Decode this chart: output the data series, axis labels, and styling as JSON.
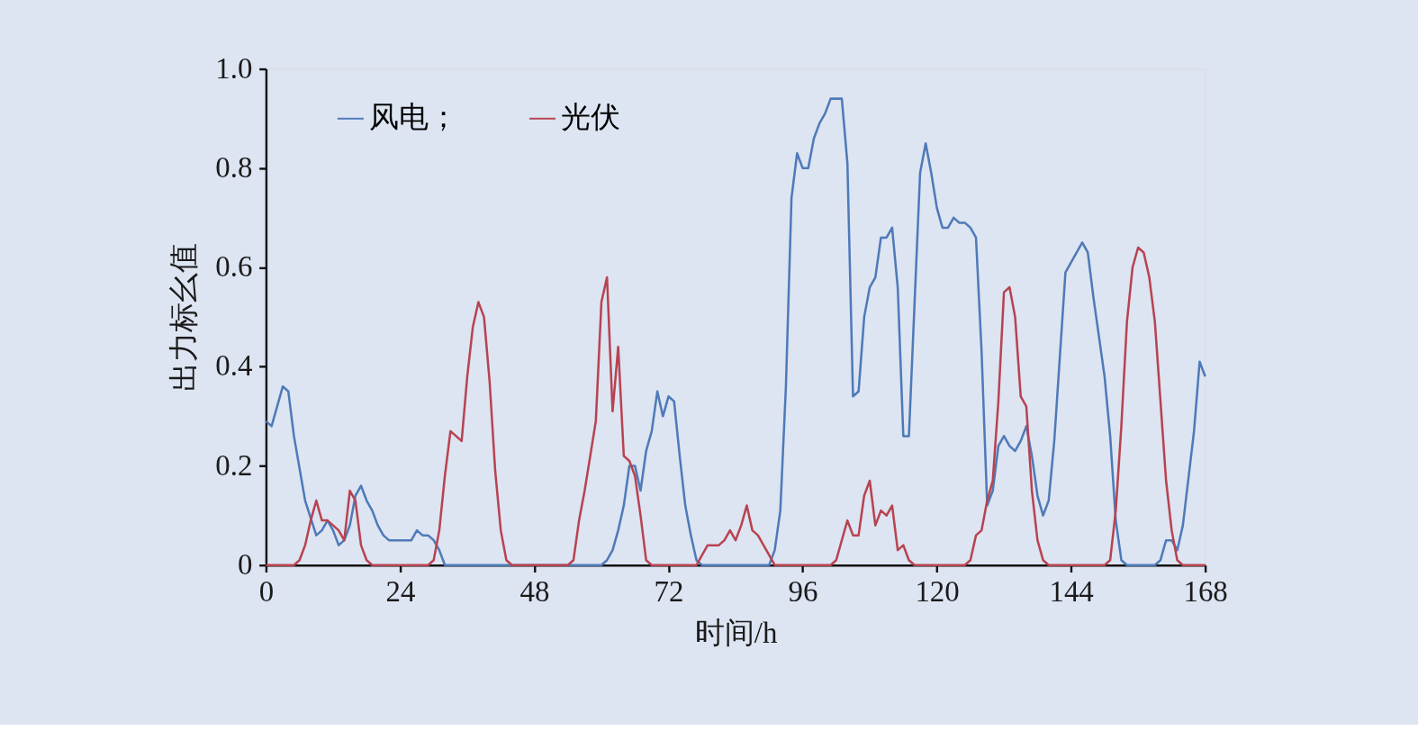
{
  "chart_data": {
    "type": "line",
    "xlabel": "时间/h",
    "ylabel": "出力标幺值",
    "xlim": [
      0,
      168
    ],
    "xticks": [
      0,
      24,
      48,
      72,
      96,
      120,
      144,
      168
    ],
    "ylim": [
      0,
      1
    ],
    "yticks": [
      0,
      0.2,
      0.4,
      0.6,
      0.8,
      {
        "value": 1,
        "label": "1.0"
      }
    ],
    "grid": false,
    "legend": "top left",
    "marker": "none",
    "line_style": "solid",
    "series": [
      {
        "name": "风电；",
        "color": "#4e7ab8",
        "x": [
          0,
          1,
          3,
          4,
          5,
          7,
          9,
          10,
          11,
          12,
          13,
          14,
          15,
          16,
          17,
          18,
          19,
          20,
          21,
          22,
          26,
          27,
          28,
          29,
          30,
          31,
          32,
          60,
          61,
          62,
          63,
          64,
          65,
          66,
          67,
          68,
          69,
          70,
          71,
          72,
          73,
          74,
          75,
          76,
          77,
          78,
          90,
          91,
          92,
          93,
          94,
          95,
          96,
          97,
          98,
          99,
          100,
          101,
          103,
          104,
          105,
          106,
          107,
          108,
          109,
          110,
          111,
          112,
          113,
          114,
          115,
          117,
          118,
          119,
          120,
          121,
          122,
          123,
          124,
          125,
          126,
          127,
          128,
          129,
          130,
          131,
          132,
          133,
          134,
          135,
          136,
          137,
          138,
          139,
          140,
          141,
          143,
          146,
          147,
          148,
          149,
          150,
          151,
          152,
          153,
          154,
          159,
          160,
          161,
          162,
          163,
          164,
          166,
          167,
          168
        ],
        "values": [
          0.29,
          0.28,
          0.36,
          0.35,
          0.26,
          0.13,
          0.06,
          0.07,
          0.09,
          0.07,
          0.04,
          0.05,
          0.08,
          0.14,
          0.16,
          0.13,
          0.11,
          0.08,
          0.06,
          0.05,
          0.05,
          0.07,
          0.06,
          0.06,
          0.05,
          0.03,
          0,
          0,
          0.01,
          0.03,
          0.07,
          0.12,
          0.2,
          0.2,
          0.15,
          0.23,
          0.27,
          0.35,
          0.3,
          0.34,
          0.33,
          0.22,
          0.12,
          0.06,
          0.01,
          0,
          0,
          0.03,
          0.11,
          0.36,
          0.74,
          0.83,
          0.8,
          0.8,
          0.86,
          0.89,
          0.91,
          0.94,
          0.94,
          0.81,
          0.34,
          0.35,
          0.5,
          0.56,
          0.58,
          0.66,
          0.66,
          0.68,
          0.56,
          0.26,
          0.26,
          0.79,
          0.85,
          0.79,
          0.72,
          0.68,
          0.68,
          0.7,
          0.69,
          0.69,
          0.68,
          0.66,
          0.43,
          0.12,
          0.15,
          0.24,
          0.26,
          0.24,
          0.23,
          0.25,
          0.28,
          0.22,
          0.14,
          0.1,
          0.13,
          0.25,
          0.59,
          0.65,
          0.63,
          0.54,
          0.46,
          0.38,
          0.26,
          0.09,
          0.01,
          0,
          0,
          0.01,
          0.05,
          0.05,
          0.03,
          0.08,
          0.27,
          0.41,
          0.38
        ]
      },
      {
        "name": "光伏",
        "color": "#b84350",
        "x": [
          0,
          5,
          6,
          7,
          8,
          9,
          10,
          11,
          12,
          13,
          14,
          15,
          16,
          17,
          18,
          19,
          29,
          30,
          31,
          32,
          33,
          34,
          35,
          36,
          37,
          38,
          39,
          40,
          41,
          42,
          43,
          44,
          54,
          55,
          56,
          57,
          58,
          59,
          60,
          61,
          62,
          63,
          64,
          65,
          66,
          67,
          68,
          69,
          77,
          78,
          79,
          80,
          81,
          82,
          83,
          84,
          85,
          86,
          87,
          88,
          89,
          90,
          91,
          101,
          102,
          103,
          104,
          105,
          106,
          107,
          108,
          109,
          110,
          111,
          112,
          113,
          114,
          115,
          116,
          125,
          126,
          127,
          128,
          129,
          130,
          131,
          132,
          133,
          134,
          135,
          136,
          137,
          138,
          139,
          140,
          150,
          151,
          152,
          153,
          154,
          155,
          156,
          157,
          158,
          159,
          160,
          161,
          162,
          163,
          164,
          168
        ],
        "values": [
          0,
          0,
          0.01,
          0.04,
          0.09,
          0.13,
          0.09,
          0.09,
          0.08,
          0.07,
          0.05,
          0.15,
          0.13,
          0.04,
          0.01,
          0,
          0,
          0.01,
          0.07,
          0.18,
          0.27,
          0.26,
          0.25,
          0.38,
          0.48,
          0.53,
          0.5,
          0.37,
          0.19,
          0.07,
          0.01,
          0,
          0,
          0.01,
          0.09,
          0.15,
          0.22,
          0.29,
          0.53,
          0.58,
          0.31,
          0.44,
          0.22,
          0.21,
          0.18,
          0.1,
          0.01,
          0,
          0,
          0.02,
          0.04,
          0.04,
          0.04,
          0.05,
          0.07,
          0.05,
          0.08,
          0.12,
          0.07,
          0.06,
          0.04,
          0.02,
          0,
          0,
          0.01,
          0.05,
          0.09,
          0.06,
          0.06,
          0.14,
          0.17,
          0.08,
          0.11,
          0.1,
          0.12,
          0.03,
          0.04,
          0.01,
          0,
          0,
          0.01,
          0.06,
          0.07,
          0.13,
          0.17,
          0.33,
          0.55,
          0.56,
          0.5,
          0.34,
          0.32,
          0.15,
          0.05,
          0.01,
          0,
          0,
          0.01,
          0.11,
          0.28,
          0.49,
          0.6,
          0.64,
          0.63,
          0.58,
          0.49,
          0.33,
          0.17,
          0.07,
          0.01,
          0,
          0
        ]
      }
    ]
  }
}
